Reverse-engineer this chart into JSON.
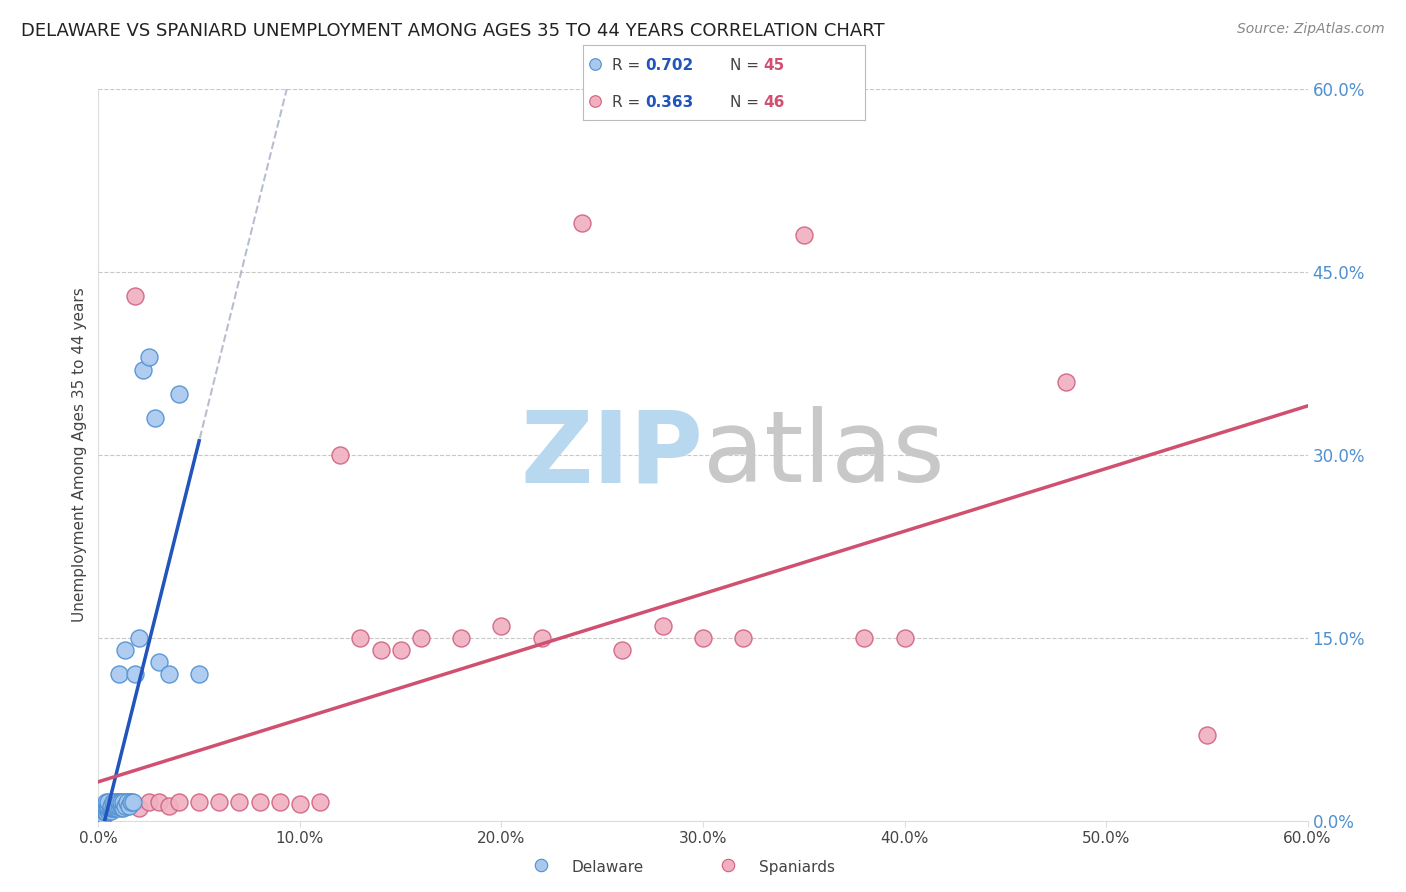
{
  "title": "DELAWARE VS SPANIARD UNEMPLOYMENT AMONG AGES 35 TO 44 YEARS CORRELATION CHART",
  "source": "Source: ZipAtlas.com",
  "ylabel": "Unemployment Among Ages 35 to 44 years",
  "xlim": [
    0,
    0.6
  ],
  "ylim": [
    0,
    0.6
  ],
  "xticks": [
    0.0,
    0.1,
    0.2,
    0.3,
    0.4,
    0.5,
    0.6
  ],
  "yticks": [
    0.0,
    0.15,
    0.3,
    0.45,
    0.6
  ],
  "xtick_labels": [
    "0.0%",
    "10.0%",
    "20.0%",
    "30.0%",
    "40.0%",
    "50.0%",
    "60.0%"
  ],
  "ytick_labels": [
    "0.0%",
    "15.0%",
    "30.0%",
    "45.0%",
    "60.0%"
  ],
  "background_color": "#ffffff",
  "grid_color": "#c8c8c8",
  "watermark_zip_color": "#b8d8f0",
  "watermark_atlas_color": "#c8c8c8",
  "delaware_fill_color": "#a8c8f0",
  "delaware_edge_color": "#5090d0",
  "spaniard_fill_color": "#f0b0c0",
  "spaniard_edge_color": "#d06080",
  "delaware_line_color": "#2255bb",
  "spaniard_line_color": "#d05070",
  "dashed_line_color": "#b0b8c8",
  "right_axis_color": "#5090d0",
  "title_fontsize": 13,
  "legend_R_color": "#2255bb",
  "legend_N_color": "#d05070",
  "delaware_x": [
    0.001,
    0.002,
    0.002,
    0.002,
    0.003,
    0.003,
    0.003,
    0.004,
    0.004,
    0.004,
    0.005,
    0.005,
    0.005,
    0.005,
    0.006,
    0.006,
    0.006,
    0.007,
    0.007,
    0.008,
    0.008,
    0.009,
    0.009,
    0.01,
    0.01,
    0.01,
    0.011,
    0.011,
    0.012,
    0.012,
    0.013,
    0.013,
    0.014,
    0.015,
    0.016,
    0.017,
    0.018,
    0.02,
    0.022,
    0.025,
    0.028,
    0.03,
    0.035,
    0.04,
    0.05
  ],
  "delaware_y": [
    0.005,
    0.005,
    0.008,
    0.01,
    0.005,
    0.008,
    0.01,
    0.007,
    0.01,
    0.015,
    0.008,
    0.01,
    0.012,
    0.015,
    0.008,
    0.01,
    0.012,
    0.01,
    0.015,
    0.01,
    0.015,
    0.01,
    0.012,
    0.012,
    0.015,
    0.12,
    0.012,
    0.015,
    0.01,
    0.015,
    0.012,
    0.14,
    0.015,
    0.012,
    0.015,
    0.015,
    0.12,
    0.15,
    0.37,
    0.38,
    0.33,
    0.13,
    0.12,
    0.35,
    0.12
  ],
  "spaniard_x": [
    0.002,
    0.003,
    0.004,
    0.005,
    0.006,
    0.007,
    0.008,
    0.009,
    0.01,
    0.011,
    0.012,
    0.013,
    0.014,
    0.015,
    0.016,
    0.018,
    0.02,
    0.025,
    0.03,
    0.035,
    0.04,
    0.05,
    0.06,
    0.07,
    0.08,
    0.09,
    0.1,
    0.11,
    0.12,
    0.13,
    0.14,
    0.15,
    0.16,
    0.18,
    0.2,
    0.22,
    0.24,
    0.26,
    0.28,
    0.3,
    0.32,
    0.35,
    0.38,
    0.4,
    0.48,
    0.55
  ],
  "spaniard_y": [
    0.005,
    0.005,
    0.008,
    0.008,
    0.01,
    0.01,
    0.015,
    0.012,
    0.015,
    0.01,
    0.012,
    0.015,
    0.012,
    0.015,
    0.015,
    0.43,
    0.01,
    0.015,
    0.015,
    0.012,
    0.015,
    0.015,
    0.015,
    0.015,
    0.015,
    0.015,
    0.014,
    0.015,
    0.3,
    0.15,
    0.14,
    0.14,
    0.15,
    0.15,
    0.16,
    0.15,
    0.49,
    0.14,
    0.16,
    0.15,
    0.15,
    0.48,
    0.15,
    0.15,
    0.36,
    0.07
  ],
  "delaware_R": "0.702",
  "delaware_N": "45",
  "spaniard_R": "0.363",
  "spaniard_N": "46"
}
